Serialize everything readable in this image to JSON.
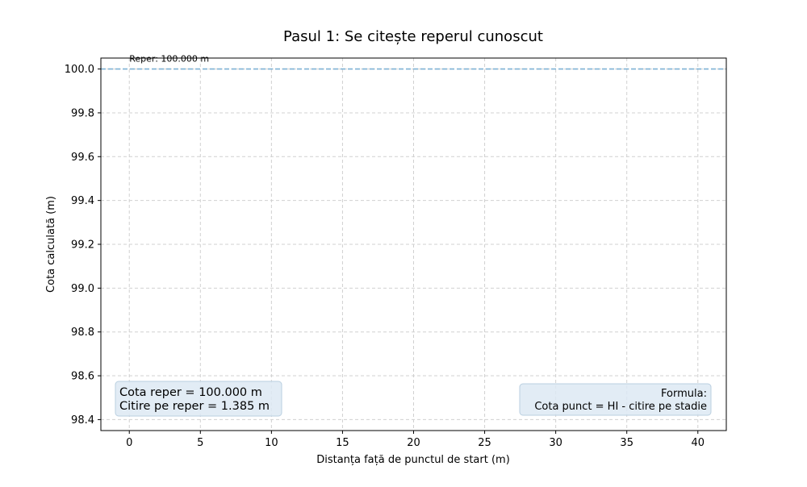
{
  "chart_data": {
    "type": "line",
    "title": "Pasul 1: Se citește reperul cunoscut",
    "xlabel": "Distanța față de punctul de start (m)",
    "ylabel": "Cota calculată (m)",
    "xlim": [
      -2,
      42
    ],
    "ylim": [
      98.35,
      100.05
    ],
    "x_ticks": [
      0,
      5,
      10,
      15,
      20,
      25,
      30,
      35,
      40
    ],
    "y_ticks": [
      98.4,
      98.6,
      98.8,
      99.0,
      99.2,
      99.4,
      99.6,
      99.8,
      100.0
    ],
    "grid": true,
    "reference_line": {
      "y": 100.0,
      "label": "Reper: 100.000 m",
      "color": "#7fb2d5",
      "style": "dashed"
    },
    "info_box": {
      "lines": [
        "Cota reper = 100.000 m",
        "Citire pe reper = 1.385 m"
      ]
    },
    "formula_box": {
      "lines": [
        "Formula:",
        "Cota punct = HI - citire pe stadie"
      ]
    }
  }
}
